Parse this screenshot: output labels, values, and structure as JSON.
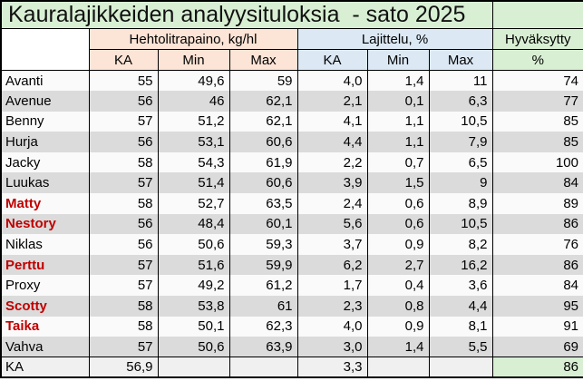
{
  "title": "Kauralajikkeiden analyysituloksia  - sato 2025",
  "columns": {
    "group1": "Hehtolitrapaino, kg/hl",
    "group2": "Lajittelu, %",
    "group3": "Hyväksytty",
    "subheaders": [
      "KA",
      "Min",
      "Max",
      "KA",
      "Min",
      "Max",
      "%"
    ]
  },
  "rows": [
    {
      "name": "Avanti",
      "red": false,
      "values": [
        "55",
        "49,6",
        "59",
        "4,0",
        "1,4",
        "11",
        "74"
      ]
    },
    {
      "name": "Avenue",
      "red": false,
      "values": [
        "56",
        "46",
        "62,1",
        "2,1",
        "0,1",
        "6,3",
        "77"
      ]
    },
    {
      "name": "Benny",
      "red": false,
      "values": [
        "57",
        "51,2",
        "62,1",
        "4,1",
        "1,1",
        "10,5",
        "85"
      ]
    },
    {
      "name": "Hurja",
      "red": false,
      "values": [
        "56",
        "53,1",
        "60,6",
        "4,4",
        "1,1",
        "7,9",
        "85"
      ]
    },
    {
      "name": "Jacky",
      "red": false,
      "values": [
        "58",
        "54,3",
        "61,9",
        "2,2",
        "0,7",
        "6,5",
        "100"
      ]
    },
    {
      "name": "Luukas",
      "red": false,
      "values": [
        "57",
        "51,4",
        "60,6",
        "3,9",
        "1,5",
        "9",
        "84"
      ]
    },
    {
      "name": "Matty",
      "red": true,
      "values": [
        "58",
        "52,7",
        "63,5",
        "2,4",
        "0,6",
        "8,9",
        "89"
      ]
    },
    {
      "name": "Nestory",
      "red": true,
      "values": [
        "56",
        "48,4",
        "60,1",
        "5,6",
        "0,6",
        "10,5",
        "86"
      ]
    },
    {
      "name": "Niklas",
      "red": false,
      "values": [
        "56",
        "50,6",
        "59,3",
        "3,7",
        "0,9",
        "8,2",
        "76"
      ]
    },
    {
      "name": "Perttu",
      "red": true,
      "values": [
        "57",
        "51,6",
        "59,9",
        "6,2",
        "2,7",
        "16,2",
        "86"
      ]
    },
    {
      "name": "Proxy",
      "red": false,
      "values": [
        "57",
        "49,2",
        "61,2",
        "1,7",
        "0,4",
        "3,6",
        "84"
      ]
    },
    {
      "name": "Scotty",
      "red": true,
      "values": [
        "58",
        "53,8",
        "61",
        "2,3",
        "0,8",
        "4,4",
        "95"
      ]
    },
    {
      "name": "Taika",
      "red": true,
      "values": [
        "58",
        "50,1",
        "62,3",
        "4,0",
        "0,9",
        "8,1",
        "91"
      ]
    },
    {
      "name": "Vahva",
      "red": false,
      "values": [
        "57",
        "50,6",
        "63,9",
        "3,0",
        "1,4",
        "5,5",
        "69"
      ]
    }
  ],
  "footer": {
    "label": "KA",
    "values": [
      "56,9",
      "",
      "",
      "3,3",
      "",
      "",
      "86"
    ]
  },
  "colors": {
    "green": "#D8EFD3",
    "salmon": "#FCE4D6",
    "blue": "#DCE9F5",
    "stripe_gray": "#DBDBDB",
    "row_white": "#FAFAFA",
    "footer_gray": "#F0F0F0",
    "highlight_red": "#C00000",
    "border": "#000000"
  }
}
